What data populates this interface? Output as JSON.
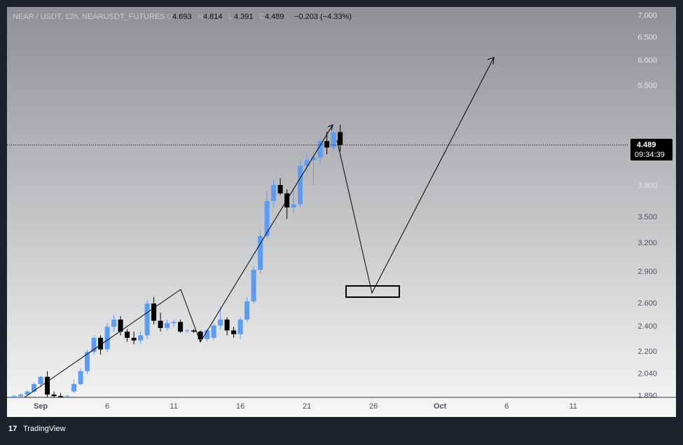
{
  "chart_data": {
    "type": "candlestick",
    "title": "NEAR / USDT, 12h, NEARUSDT_FUTURES",
    "ohlc_labels": [
      "O",
      "H",
      "L",
      "C"
    ],
    "change_text": "−0.203 (−4.33%)",
    "last_price": 4.489,
    "countdown": "09:34:39",
    "brand": "TradingView",
    "log_scale": true,
    "up_color": "#5b9cf6",
    "down_color": "#000000",
    "x": [
      -1,
      -0.5,
      0,
      0.5,
      1,
      1.5,
      2,
      2.5,
      3,
      3.5,
      4,
      4.5,
      5,
      5.5,
      6,
      6.5,
      7,
      7.5,
      8,
      8.5,
      9,
      9.5,
      10,
      10.5,
      11,
      11.5,
      12,
      12.5,
      13,
      13.5,
      14,
      14.5,
      15,
      15.5,
      16,
      16.5,
      17,
      17.5,
      18,
      18.5,
      19,
      19.5,
      20,
      20.5,
      21,
      21.5,
      22,
      22.5,
      23,
      23.5
    ],
    "open": [
      1.88,
      1.89,
      1.9,
      1.92,
      1.97,
      2.02,
      1.9,
      1.89,
      1.88,
      1.92,
      1.97,
      2.06,
      2.2,
      2.31,
      2.22,
      2.4,
      2.46,
      2.36,
      2.31,
      2.29,
      2.33,
      2.6,
      2.45,
      2.39,
      2.43,
      2.44,
      2.37,
      2.37,
      2.36,
      2.3,
      2.31,
      2.41,
      2.46,
      2.37,
      2.34,
      2.46,
      2.62,
      2.92,
      3.28,
      3.7,
      3.91,
      3.8,
      3.62,
      3.66,
      4.18,
      4.26,
      4.3,
      4.55,
      4.45,
      4.693
    ],
    "high": [
      1.9,
      1.91,
      1.93,
      1.98,
      2.03,
      2.06,
      1.92,
      1.91,
      1.9,
      2.0,
      2.08,
      2.22,
      2.33,
      2.33,
      2.43,
      2.5,
      2.49,
      2.38,
      2.36,
      2.36,
      2.63,
      2.66,
      2.52,
      2.46,
      2.46,
      2.46,
      2.38,
      2.38,
      2.37,
      2.38,
      2.43,
      2.57,
      2.48,
      2.4,
      2.48,
      2.66,
      2.95,
      3.35,
      3.85,
      3.98,
      4.0,
      3.85,
      3.88,
      4.25,
      4.35,
      4.38,
      4.6,
      4.7,
      4.81,
      4.814
    ],
    "low": [
      1.87,
      1.88,
      1.89,
      1.91,
      1.95,
      1.88,
      1.87,
      1.87,
      1.86,
      1.91,
      1.96,
      2.04,
      2.18,
      2.18,
      2.2,
      2.36,
      2.33,
      2.28,
      2.26,
      2.26,
      2.3,
      2.42,
      2.36,
      2.37,
      2.4,
      2.35,
      2.35,
      2.35,
      2.28,
      2.28,
      2.29,
      2.38,
      2.33,
      2.31,
      2.3,
      2.44,
      2.6,
      2.88,
      3.25,
      3.62,
      3.78,
      3.48,
      3.55,
      3.62,
      4.08,
      3.92,
      4.2,
      4.35,
      4.39,
      4.391
    ],
    "close": [
      1.89,
      1.9,
      1.92,
      1.97,
      2.02,
      1.9,
      1.89,
      1.88,
      1.89,
      1.97,
      2.06,
      2.2,
      2.31,
      2.22,
      2.4,
      2.46,
      2.36,
      2.31,
      2.29,
      2.33,
      2.6,
      2.45,
      2.39,
      2.43,
      2.44,
      2.36,
      2.37,
      2.36,
      2.3,
      2.37,
      2.41,
      2.46,
      2.37,
      2.34,
      2.46,
      2.62,
      2.92,
      3.28,
      3.7,
      3.91,
      3.8,
      3.62,
      3.66,
      4.18,
      4.26,
      4.3,
      4.55,
      4.45,
      4.69,
      4.489
    ],
    "xlim": [
      -1.53,
      45.2
    ],
    "xticks": [
      {
        "value": 1,
        "label": "Sep"
      },
      6,
      11,
      16,
      21,
      26,
      {
        "value": 31,
        "label": "Oct"
      },
      {
        "value": 36,
        "label": "6"
      },
      {
        "value": 41,
        "label": "11"
      }
    ],
    "ylim": [
      1.882,
      7.22
    ],
    "yticks": [
      {
        "value": 1.89,
        "label": "1.890"
      },
      {
        "value": 2.04,
        "label": "2.040"
      },
      {
        "value": 2.2,
        "label": "2.200"
      },
      {
        "value": 2.4,
        "label": "2.400"
      },
      {
        "value": 2.6,
        "label": "2.600"
      },
      {
        "value": 2.9,
        "label": "2.900"
      },
      {
        "value": 3.2,
        "label": "3.200"
      },
      {
        "value": 3.5,
        "label": "3.500"
      },
      {
        "value": 3.9,
        "label": "3.900"
      },
      {
        "value": 5.5,
        "label": "5.500"
      },
      {
        "value": 6,
        "label": "6.000"
      },
      {
        "value": 6.5,
        "label": "6.500"
      },
      {
        "value": 7,
        "label": "7.000"
      }
    ]
  }
}
